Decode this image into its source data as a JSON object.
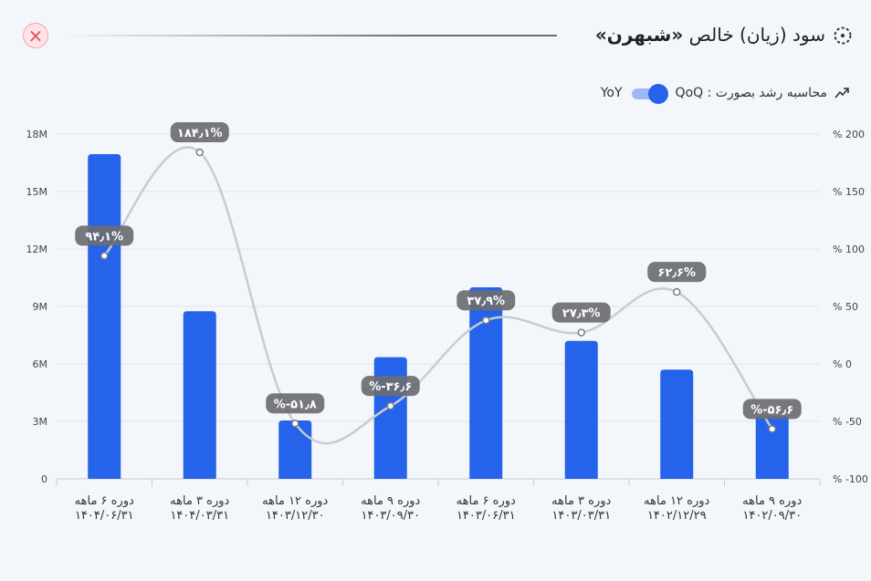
{
  "header": {
    "title_prefix": "سود (زیان) خالص",
    "title_symbol": "«شبهرن»",
    "close_icon": "close-icon",
    "title_icon": "dotted-circle-icon"
  },
  "growth": {
    "label": "محاسبه رشد بصورت : QoQ",
    "toggle_alt": "YoY",
    "icon": "trend-arrow-icon"
  },
  "chart_data": {
    "type": "bar",
    "categories": [
      {
        "line1": "دوره ۹ ماهه",
        "line2": "۱۴۰۲/۰۹/۳۰"
      },
      {
        "line1": "دوره ۱۲ ماهه",
        "line2": "۱۴۰۲/۱۲/۲۹"
      },
      {
        "line1": "دوره ۳ ماهه",
        "line2": "۱۴۰۳/۰۳/۳۱"
      },
      {
        "line1": "دوره ۶ ماهه",
        "line2": "۱۴۰۳/۰۶/۳۱"
      },
      {
        "line1": "دوره ۹ ماهه",
        "line2": "۱۴۰۳/۰۹/۳۰"
      },
      {
        "line1": "دوره ۱۲ ماهه",
        "line2": "۱۴۰۳/۱۲/۳۰"
      },
      {
        "line1": "دوره ۳ ماهه",
        "line2": "۱۴۰۴/۰۳/۳۱"
      },
      {
        "line1": "دوره ۶ ماهه",
        "line2": "۱۴۰۴/۰۶/۳۱"
      }
    ],
    "series": [
      {
        "values": [
          3300000,
          5700000,
          7200000,
          10000000,
          6350000,
          3050000,
          8750000,
          16950000
        ],
        "color": "#2563eb"
      },
      {
        "values": [
          -56.6,
          62.6,
          27.3,
          37.9,
          -36.6,
          -51.8,
          184.1,
          94.1
        ],
        "labels": [
          "%-۵۶٫۶",
          "۶۲٫۶%",
          "۲۷٫۳%",
          "۳۷٫۹%",
          "%-۳۶٫۶",
          "%-۵۱٫۸",
          "۱۸۴٫۱%",
          "۹۴٫۱%"
        ],
        "color": "#c9cbd0"
      }
    ],
    "y_left": {
      "min": 0,
      "max": 18000000,
      "ticks": [
        0,
        3000000,
        6000000,
        9000000,
        12000000,
        15000000,
        18000000
      ],
      "tick_labels": [
        "0",
        "3M",
        "6M",
        "9M",
        "12M",
        "15M",
        "18M"
      ]
    },
    "y_right": {
      "min": -100,
      "max": 200,
      "ticks": [
        -100,
        -50,
        0,
        50,
        100,
        150,
        200
      ],
      "tick_labels": [
        "% -100",
        "% -50",
        "% 0",
        "% 50",
        "% 100",
        "% 150",
        "% 200"
      ]
    },
    "grid": true
  }
}
